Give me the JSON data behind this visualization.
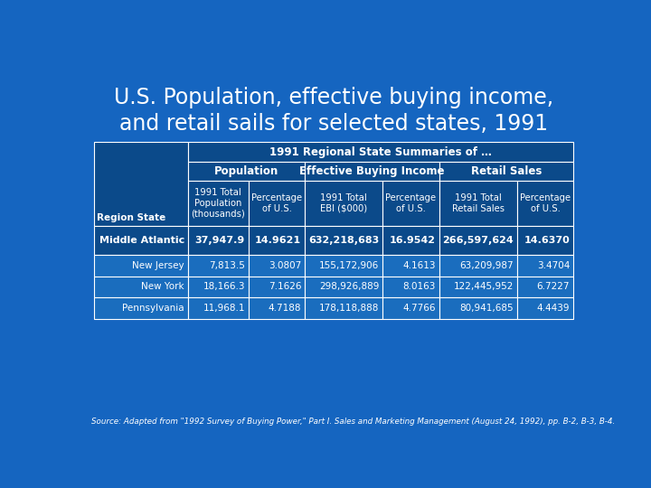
{
  "title": "U.S. Population, effective buying income,\nand retail sails for selected states, 1991",
  "bg_color": "#1565C0",
  "source_text": "Source: Adapted from \"1992 Survey of Buying Power,\" Part I. Sales and Marketing Management (August 24, 1992), pp. B-2, B-3, B-4.",
  "col_header_row1": "1991 Regional State Summaries of …",
  "col_header_pop": "Population",
  "col_header_ebi": "Effective Buying Income",
  "col_header_rs": "Retail Sales",
  "sub_cols": [
    "1991 Total\nPopulation\n(thousands)",
    "Percentage\nof U.S.",
    "1991 Total\nEBI ($000)",
    "Percentage\nof U.S.",
    "1991 Total\nRetail Sales",
    "Percentage\nof U.S."
  ],
  "row_header_label": "Region State",
  "DARK_BG": "#0b4a8a",
  "CELL_BG": "#1a6dbe",
  "rows": [
    {
      "name": "Middle Atlantic",
      "bold": true,
      "vals": [
        "37,947.9",
        "14.9621",
        "632,218,683",
        "16.9542",
        "266,597,624",
        "14.6370"
      ]
    },
    {
      "name": "New Jersey",
      "bold": false,
      "vals": [
        "7,813.5",
        "3.0807",
        "155,172,906",
        "4.1613",
        "63,209,987",
        "3.4704"
      ]
    },
    {
      "name": "New York",
      "bold": false,
      "vals": [
        "18,166.3",
        "7.1626",
        "298,926,889",
        "8.0163",
        "122,445,952",
        "6.7227"
      ]
    },
    {
      "name": "Pennsylvania",
      "bold": false,
      "vals": [
        "11,968.1",
        "4.7188",
        "178,118,888",
        "4.7766",
        "80,941,685",
        "4.4439"
      ]
    }
  ]
}
